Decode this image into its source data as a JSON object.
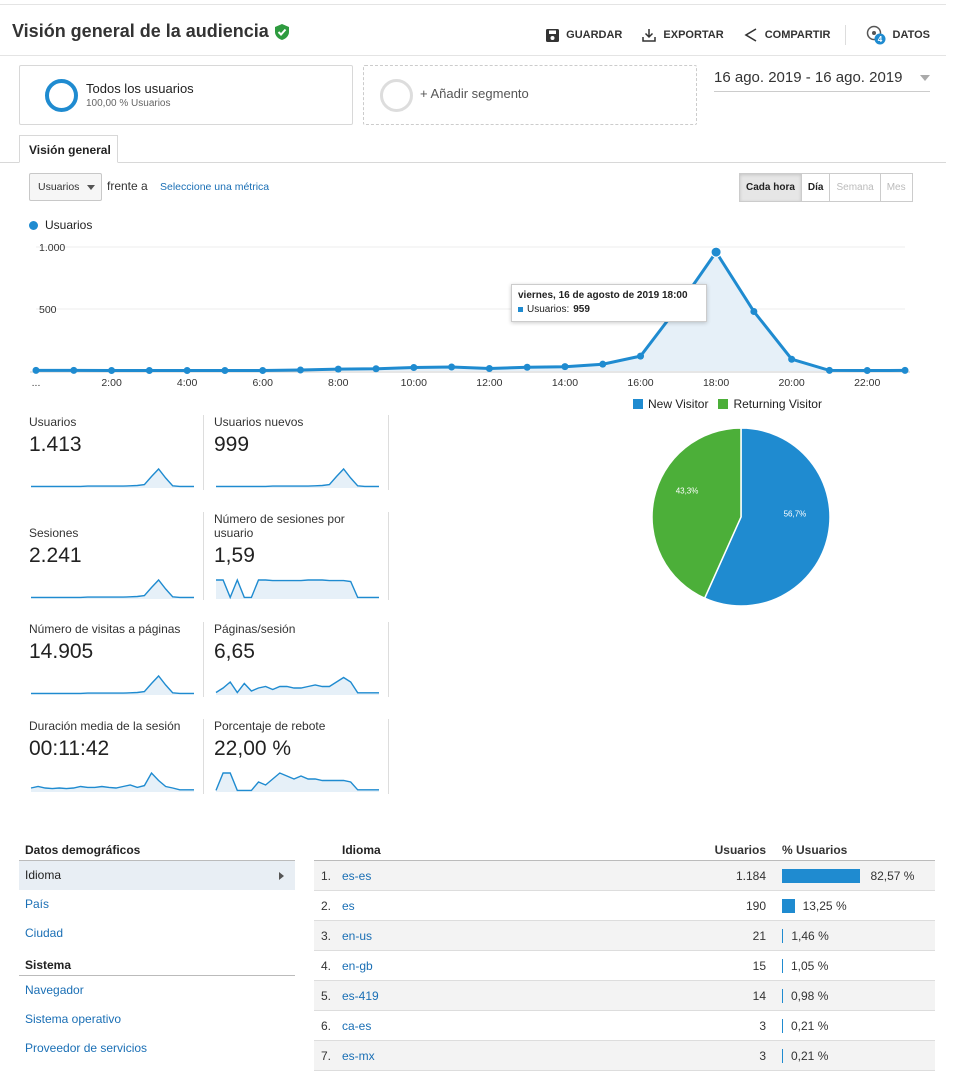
{
  "header": {
    "title": "Visión general de la audiencia",
    "actions": {
      "save": "GUARDAR",
      "export": "EXPORTAR",
      "share": "COMPARTIR",
      "data": "DATOS",
      "data_badge": "4"
    }
  },
  "segments": {
    "active": {
      "title": "Todos los usuarios",
      "subtitle": "100,00 % Usuarios"
    },
    "add": "+ Añadir segmento"
  },
  "date_range": "16 ago. 2019 - 16 ago. 2019",
  "tabs": [
    "Visión general"
  ],
  "controls": {
    "metric": "Usuarios",
    "versus": "frente a",
    "select_metric": "Seleccione una métrica",
    "granularity": [
      "Cada hora",
      "Día",
      "Semana",
      "Mes"
    ]
  },
  "chart_legend": "Usuarios",
  "tooltip": {
    "date": "viernes, 16 de agosto de 2019 18:00",
    "label": "Usuarios:",
    "value": "959"
  },
  "colors": {
    "accent": "#1f8bd0",
    "returning": "#4caf39",
    "link": "#1a6fb5"
  },
  "chart_data": [
    {
      "type": "line",
      "x_ticks": [
        "...",
        "2:00",
        "4:00",
        "6:00",
        "8:00",
        "10:00",
        "12:00",
        "14:00",
        "16:00",
        "18:00",
        "20:00",
        "22:00"
      ],
      "x": [
        0,
        1,
        2,
        3,
        4,
        5,
        6,
        7,
        8,
        9,
        10,
        11,
        12,
        13,
        14,
        15,
        16,
        17,
        18,
        19,
        20,
        21,
        22,
        23
      ],
      "series": [
        {
          "name": "Usuarios",
          "values": [
            5,
            5,
            4,
            4,
            4,
            4,
            4,
            8,
            15,
            18,
            28,
            32,
            20,
            30,
            35,
            55,
            120,
            520,
            959,
            480,
            95,
            5,
            4,
            5
          ]
        }
      ],
      "y_ticks": [
        "500",
        "1.000"
      ],
      "ylim": [
        0,
        1000
      ]
    },
    {
      "type": "pie",
      "labels": [
        "New Visitor",
        "Returning Visitor"
      ],
      "values": [
        56.7,
        43.3
      ],
      "value_labels": [
        "56,7%",
        "43,3%"
      ]
    }
  ],
  "metrics": [
    {
      "label": "Usuarios",
      "value": "1.413",
      "spark": [
        2,
        2,
        2,
        2,
        2,
        2,
        2,
        2,
        3,
        3,
        3,
        3,
        3,
        3,
        4,
        5,
        8,
        35,
        60,
        30,
        4,
        2,
        2,
        2
      ]
    },
    {
      "label": "Usuarios nuevos",
      "value": "999",
      "spark": [
        2,
        2,
        2,
        2,
        2,
        2,
        2,
        2,
        3,
        3,
        3,
        3,
        3,
        3,
        4,
        5,
        8,
        35,
        60,
        30,
        4,
        2,
        2,
        2
      ]
    },
    {
      "label": "Sesiones",
      "value": "2.241",
      "spark": [
        2,
        2,
        2,
        2,
        2,
        2,
        2,
        2,
        3,
        3,
        3,
        3,
        3,
        3,
        4,
        5,
        8,
        35,
        60,
        30,
        4,
        2,
        2,
        2
      ]
    },
    {
      "label": "Número de sesiones por usuario",
      "value": "1,59",
      "spark": [
        60,
        60,
        2,
        60,
        2,
        2,
        60,
        60,
        58,
        58,
        58,
        58,
        58,
        60,
        60,
        60,
        58,
        58,
        58,
        55,
        2,
        2,
        2,
        2
      ]
    },
    {
      "label": "Número de visitas a páginas",
      "value": "14.905",
      "spark": [
        2,
        2,
        2,
        2,
        2,
        2,
        2,
        2,
        3,
        3,
        3,
        3,
        3,
        3,
        4,
        5,
        8,
        35,
        60,
        30,
        4,
        2,
        2,
        2
      ]
    },
    {
      "label": "Páginas/sesión",
      "value": "6,65",
      "spark": [
        5,
        20,
        40,
        5,
        35,
        10,
        20,
        25,
        15,
        25,
        25,
        20,
        20,
        25,
        30,
        25,
        25,
        40,
        55,
        40,
        4,
        4,
        4,
        4
      ]
    },
    {
      "label": "Duración media de la sesión",
      "value": "00:11:42",
      "spark": [
        10,
        15,
        10,
        8,
        10,
        8,
        10,
        15,
        12,
        12,
        15,
        12,
        10,
        15,
        20,
        12,
        18,
        60,
        35,
        15,
        10,
        4,
        4,
        4
      ]
    },
    {
      "label": "Porcentaje de rebote",
      "value": "22,00 %",
      "spark": [
        2,
        60,
        60,
        2,
        2,
        2,
        30,
        20,
        40,
        60,
        50,
        40,
        50,
        40,
        40,
        35,
        35,
        35,
        35,
        30,
        4,
        4,
        4,
        4
      ]
    }
  ],
  "demographics": {
    "heading": "Datos demográficos",
    "items": [
      "Idioma",
      "País",
      "Ciudad"
    ],
    "system_heading": "Sistema",
    "system_items": [
      "Navegador",
      "Sistema operativo",
      "Proveedor de servicios"
    ]
  },
  "language_table": {
    "headers": {
      "name": "Idioma",
      "users": "Usuarios",
      "pct": "% Usuarios"
    },
    "rows": [
      {
        "n": "1.",
        "lang": "es-es",
        "users": "1.184",
        "pct": "82,57 %",
        "frac": 0.8257
      },
      {
        "n": "2.",
        "lang": "es",
        "users": "190",
        "pct": "13,25 %",
        "frac": 0.1325
      },
      {
        "n": "3.",
        "lang": "en-us",
        "users": "21",
        "pct": "1,46 %",
        "frac": 0.0146
      },
      {
        "n": "4.",
        "lang": "en-gb",
        "users": "15",
        "pct": "1,05 %",
        "frac": 0.0105
      },
      {
        "n": "5.",
        "lang": "es-419",
        "users": "14",
        "pct": "0,98 %",
        "frac": 0.0098
      },
      {
        "n": "6.",
        "lang": "ca-es",
        "users": "3",
        "pct": "0,21 %",
        "frac": 0.0021
      },
      {
        "n": "7.",
        "lang": "es-mx",
        "users": "3",
        "pct": "0,21 %",
        "frac": 0.0021
      }
    ]
  }
}
